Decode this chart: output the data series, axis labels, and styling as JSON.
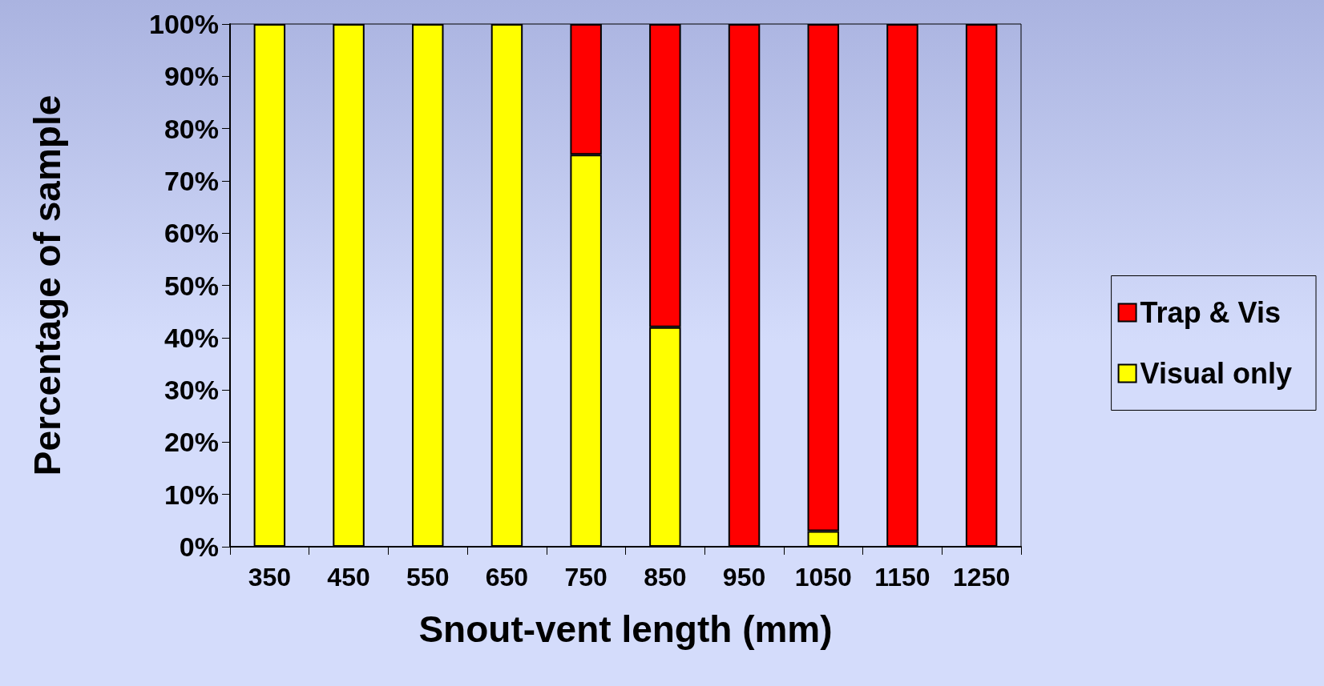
{
  "chart_data": {
    "type": "bar",
    "stacked": true,
    "xlabel": "Snout-vent length (mm)",
    "ylabel": "Percentage of sample",
    "categories": [
      "350",
      "450",
      "550",
      "650",
      "750",
      "850",
      "950",
      "1050",
      "1150",
      "1250"
    ],
    "series": [
      {
        "name": "Visual only",
        "color": "#ffff00",
        "values": [
          100,
          100,
          100,
          100,
          75,
          42,
          0,
          3,
          0,
          0
        ]
      },
      {
        "name": "Trap & Vis",
        "color": "#ff0000",
        "values": [
          0,
          0,
          0,
          0,
          25,
          58,
          100,
          97,
          100,
          100
        ]
      }
    ],
    "ylim": [
      0,
      100
    ],
    "yticks": [
      {
        "value": 0,
        "label": "0%"
      },
      {
        "value": 10,
        "label": "10%"
      },
      {
        "value": 20,
        "label": "20%"
      },
      {
        "value": 30,
        "label": "30%"
      },
      {
        "value": 40,
        "label": "40%"
      },
      {
        "value": 50,
        "label": "50%"
      },
      {
        "value": 60,
        "label": "60%"
      },
      {
        "value": 70,
        "label": "70%"
      },
      {
        "value": 80,
        "label": "80%"
      },
      {
        "value": 90,
        "label": "90%"
      },
      {
        "value": 100,
        "label": "100%"
      }
    ],
    "grid": false,
    "legend": "right"
  }
}
